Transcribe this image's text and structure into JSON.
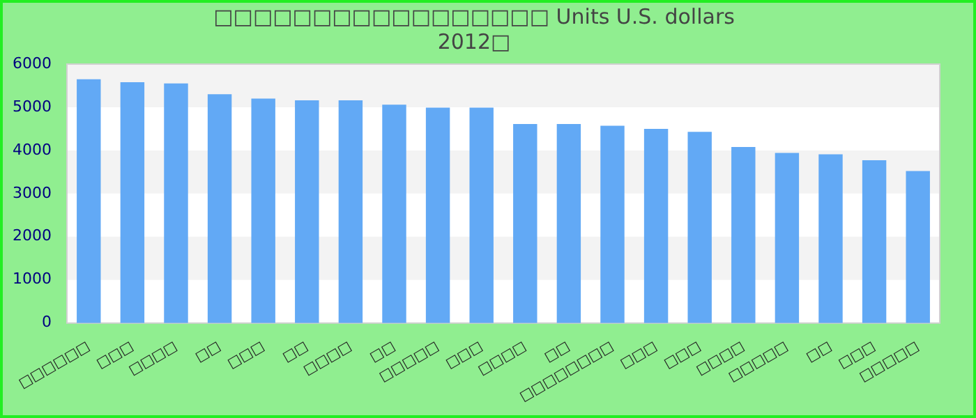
{
  "chart_data": {
    "type": "bar",
    "title": [
      "□□□□□□□□□□□□□□□□□ Units U.S. dollars",
      "2012□"
    ],
    "categories": [
      "□□□□□□",
      "□□□",
      "□□□□",
      "□□",
      "□□□",
      "□□",
      "□□□□",
      "□□",
      "□□□□□",
      "□□□",
      "□□□□",
      "□□",
      "□□□□□□□□",
      "□□□",
      "□□□",
      "□□□□",
      "□□□□□",
      "□□",
      "□□□",
      "□□□□□"
    ],
    "values": [
      5650,
      5580,
      5550,
      5300,
      5200,
      5160,
      5160,
      5060,
      4990,
      4990,
      4610,
      4610,
      4570,
      4500,
      4430,
      4080,
      3940,
      3910,
      3770,
      3520
    ],
    "color": "#62a9f5",
    "ylim": [
      0,
      6000
    ],
    "yticks": [
      0,
      1000,
      2000,
      3000,
      4000,
      5000,
      6000
    ]
  }
}
